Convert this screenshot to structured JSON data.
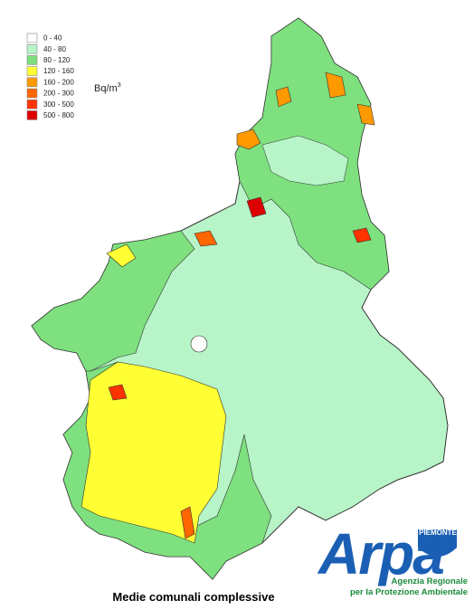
{
  "legend": [
    {
      "label": "0 - 40",
      "color": "#ffffff"
    },
    {
      "label": "40 - 80",
      "color": "#b7f5c8"
    },
    {
      "label": "80 - 120",
      "color": "#7ee07e"
    },
    {
      "label": "120 - 160",
      "color": "#ffff33"
    },
    {
      "label": "160 - 200",
      "color": "#ff9900"
    },
    {
      "label": "200 - 300",
      "color": "#ff6600"
    },
    {
      "label": "300 - 500",
      "color": "#ff3300"
    },
    {
      "label": "500 - 800",
      "color": "#dd0000"
    }
  ],
  "unit": {
    "base": "Bq/m",
    "exponent": "3"
  },
  "caption": "Medie comunali complessive",
  "logo": {
    "region": "PIEMONTE",
    "name": "Arpa",
    "lines": [
      "Agenzia Regionale",
      "per la Protezione Ambientale"
    ]
  }
}
